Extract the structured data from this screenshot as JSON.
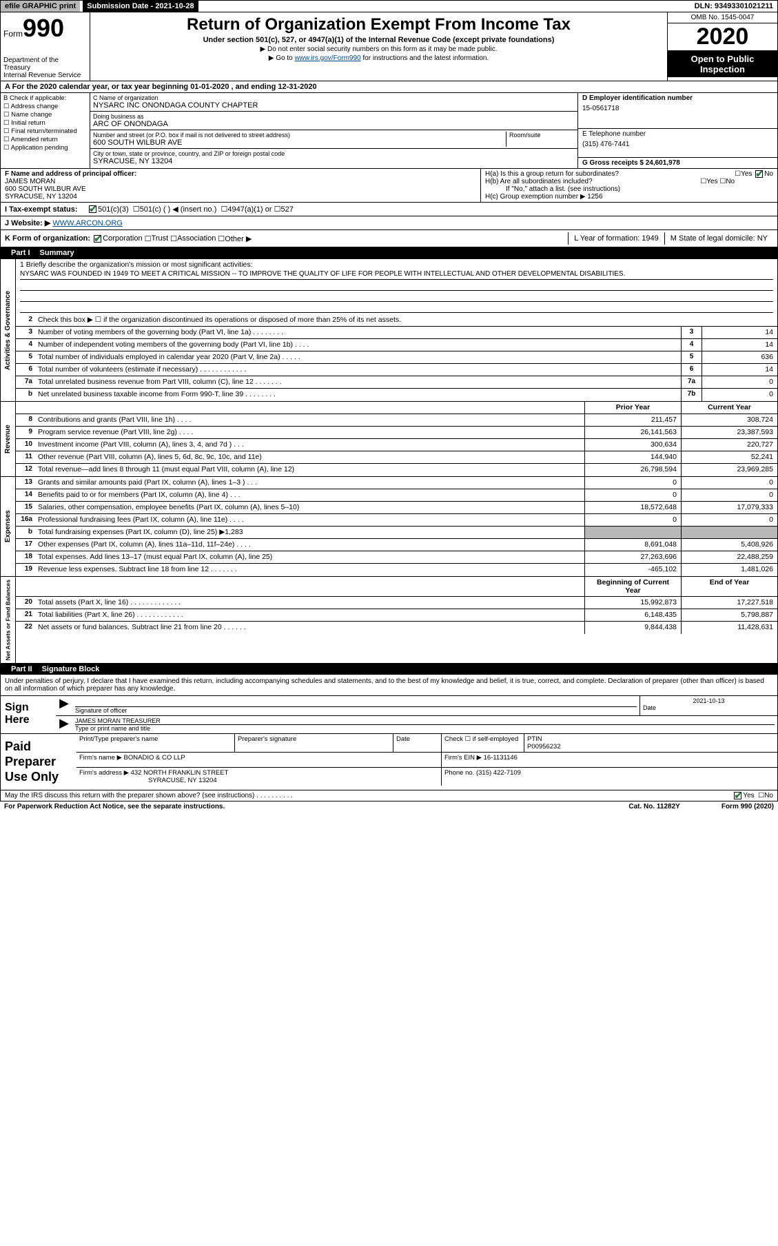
{
  "topbar": {
    "efile": "efile GRAPHIC print",
    "subdate_label": "Submission Date - 2021-10-28",
    "dln": "DLN: 93493301021211"
  },
  "header": {
    "form_prefix": "Form",
    "form_num": "990",
    "dept": "Department of the Treasury\nInternal Revenue Service",
    "title": "Return of Organization Exempt From Income Tax",
    "sub": "Under section 501(c), 527, or 4947(a)(1) of the Internal Revenue Code (except private foundations)",
    "note1": "▶ Do not enter social security numbers on this form as it may be made public.",
    "note2_pre": "▶ Go to ",
    "note2_link": "www.irs.gov/Form990",
    "note2_post": " for instructions and the latest information.",
    "omb": "OMB No. 1545-0047",
    "year": "2020",
    "inspect": "Open to Public Inspection"
  },
  "row_a": "A For the 2020 calendar year, or tax year beginning 01-01-2020   , and ending 12-31-2020",
  "col_b": {
    "label": "B Check if applicable:",
    "items": [
      "Address change",
      "Name change",
      "Initial return",
      "Final return/terminated",
      "Amended return",
      "Application pending"
    ]
  },
  "col_c": {
    "name_label": "C Name of organization",
    "name": "NYSARC INC ONONDAGA COUNTY CHAPTER",
    "dba_label": "Doing business as",
    "dba": "ARC OF ONONDAGA",
    "addr_label": "Number and street (or P.O. box if mail is not delivered to street address)",
    "room_label": "Room/suite",
    "addr": "600 SOUTH WILBUR AVE",
    "city_label": "City or town, state or province, country, and ZIP or foreign postal code",
    "city": "SYRACUSE, NY  13204"
  },
  "col_d": {
    "ein_label": "D Employer identification number",
    "ein": "15-0561718",
    "phone_label": "E Telephone number",
    "phone": "(315) 476-7441",
    "gross_label": "G Gross receipts $ 24,601,978"
  },
  "row_f": {
    "f_label": "F  Name and address of principal officer:",
    "f_name": "JAMES MORAN",
    "f_addr": "600 SOUTH WILBUR AVE\nSYRACUSE, NY  13204",
    "ha": "H(a)  Is this a group return for subordinates?",
    "ha_yes": "Yes",
    "ha_no": "No",
    "hb": "H(b)  Are all subordinates included?",
    "hb_note": "If \"No,\" attach a list. (see instructions)",
    "hc": "H(c)  Group exemption number ▶  1256"
  },
  "row_i": {
    "label": "I   Tax-exempt status:",
    "opt1": "501(c)(3)",
    "opt2": "501(c) (  ) ◀ (insert no.)",
    "opt3": "4947(a)(1) or",
    "opt4": "527"
  },
  "row_j": {
    "label": "J   Website: ▶",
    "val": "WWW.ARCON.ORG"
  },
  "row_k": {
    "k_label": "K Form of organization:",
    "opts": [
      "Corporation",
      "Trust",
      "Association",
      "Other ▶"
    ],
    "l_label": "L Year of formation: 1949",
    "m_label": "M State of legal domicile: NY"
  },
  "part1": {
    "num": "Part I",
    "title": "Summary"
  },
  "mission": {
    "label": "1  Briefly describe the organization's mission or most significant activities:",
    "text": "NYSARC WAS FOUNDED IN 1949 TO MEET A CRITICAL MISSION -- TO IMPROVE THE QUALITY OF LIFE FOR PEOPLE WITH INTELLECTUAL AND OTHER DEVELOPMENTAL DISABILITIES."
  },
  "lines_gov": [
    {
      "n": "2",
      "d": "Check this box ▶ ☐ if the organization discontinued its operations or disposed of more than 25% of its net assets.",
      "box": "",
      "val": ""
    },
    {
      "n": "3",
      "d": "Number of voting members of the governing body (Part VI, line 1a)   .   .   .   .   .   .   .   .",
      "box": "3",
      "val": "14"
    },
    {
      "n": "4",
      "d": "Number of independent voting members of the governing body (Part VI, line 1b)   .   .   .   .",
      "box": "4",
      "val": "14"
    },
    {
      "n": "5",
      "d": "Total number of individuals employed in calendar year 2020 (Part V, line 2a)   .   .   .   .   .",
      "box": "5",
      "val": "636"
    },
    {
      "n": "6",
      "d": "Total number of volunteers (estimate if necessary)   .   .   .   .   .   .   .   .   .   .   .   .",
      "box": "6",
      "val": "14"
    },
    {
      "n": "7a",
      "d": "Total unrelated business revenue from Part VIII, column (C), line 12   .   .   .   .   .   .   .",
      "box": "7a",
      "val": "0"
    },
    {
      "n": "b",
      "d": "Net unrelated business taxable income from Form 990-T, line 39   .   .   .   .   .   .   .   .",
      "box": "7b",
      "val": "0"
    }
  ],
  "col_headers": {
    "py": "Prior Year",
    "cy": "Current Year"
  },
  "lines_rev": [
    {
      "n": "8",
      "d": "Contributions and grants (Part VIII, line 1h)   .   .   .   .",
      "py": "211,457",
      "cy": "308,724"
    },
    {
      "n": "9",
      "d": "Program service revenue (Part VIII, line 2g)   .   .   .   .",
      "py": "26,141,563",
      "cy": "23,387,593"
    },
    {
      "n": "10",
      "d": "Investment income (Part VIII, column (A), lines 3, 4, and 7d )   .   .   .",
      "py": "300,634",
      "cy": "220,727"
    },
    {
      "n": "11",
      "d": "Other revenue (Part VIII, column (A), lines 5, 6d, 8c, 9c, 10c, and 11e)",
      "py": "144,940",
      "cy": "52,241"
    },
    {
      "n": "12",
      "d": "Total revenue—add lines 8 through 11 (must equal Part VIII, column (A), line 12)",
      "py": "26,798,594",
      "cy": "23,969,285"
    }
  ],
  "lines_exp": [
    {
      "n": "13",
      "d": "Grants and similar amounts paid (Part IX, column (A), lines 1–3 )   .   .   .",
      "py": "0",
      "cy": "0"
    },
    {
      "n": "14",
      "d": "Benefits paid to or for members (Part IX, column (A), line 4)   .   .   .",
      "py": "0",
      "cy": "0"
    },
    {
      "n": "15",
      "d": "Salaries, other compensation, employee benefits (Part IX, column (A), lines 5–10)",
      "py": "18,572,648",
      "cy": "17,079,333"
    },
    {
      "n": "16a",
      "d": "Professional fundraising fees (Part IX, column (A), line 11e)   .   .   .   .",
      "py": "0",
      "cy": "0"
    },
    {
      "n": "b",
      "d": "Total fundraising expenses (Part IX, column (D), line 25) ▶1,283",
      "py": "",
      "cy": "",
      "shaded": true
    },
    {
      "n": "17",
      "d": "Other expenses (Part IX, column (A), lines 11a–11d, 11f–24e)   .   .   .   .",
      "py": "8,691,048",
      "cy": "5,408,926"
    },
    {
      "n": "18",
      "d": "Total expenses. Add lines 13–17 (must equal Part IX, column (A), line 25)",
      "py": "27,263,696",
      "cy": "22,488,259"
    },
    {
      "n": "19",
      "d": "Revenue less expenses. Subtract line 18 from line 12   .   .   .   .   .   .   .",
      "py": "-465,102",
      "cy": "1,481,026"
    }
  ],
  "col_headers2": {
    "py": "Beginning of Current Year",
    "cy": "End of Year"
  },
  "lines_net": [
    {
      "n": "20",
      "d": "Total assets (Part X, line 16)   .   .   .   .   .   .   .   .   .   .   .   .   .",
      "py": "15,992,873",
      "cy": "17,227,518"
    },
    {
      "n": "21",
      "d": "Total liabilities (Part X, line 26)   .   .   .   .   .   .   .   .   .   .   .   .",
      "py": "6,148,435",
      "cy": "5,798,887"
    },
    {
      "n": "22",
      "d": "Net assets or fund balances. Subtract line 21 from line 20   .   .   .   .   .   .",
      "py": "9,844,438",
      "cy": "11,428,631"
    }
  ],
  "part2": {
    "num": "Part II",
    "title": "Signature Block"
  },
  "sig": {
    "intro": "Under penalties of perjury, I declare that I have examined this return, including accompanying schedules and statements, and to the best of my knowledge and belief, it is true, correct, and complete. Declaration of preparer (other than officer) is based on all information of which preparer has any knowledge.",
    "sign_here": "Sign Here",
    "sig_label": "Signature of officer",
    "date_val": "2021-10-13",
    "date_label": "Date",
    "name": "JAMES MORAN  TREASURER",
    "name_label": "Type or print name and title"
  },
  "paid": {
    "label": "Paid Preparer Use Only",
    "h1": "Print/Type preparer's name",
    "h2": "Preparer's signature",
    "h3": "Date",
    "h4_pre": "Check ☐ if self-employed",
    "h5_label": "PTIN",
    "h5": "P00956232",
    "firm_name_label": "Firm's name    ▶",
    "firm_name": "BONADIO & CO LLP",
    "firm_ein_label": "Firm's EIN ▶",
    "firm_ein": "16-1131146",
    "firm_addr_label": "Firm's address ▶",
    "firm_addr": "432 NORTH FRANKLIN STREET",
    "firm_city": "SYRACUSE, NY  13204",
    "phone_label": "Phone no.",
    "phone": "(315) 422-7109"
  },
  "footer": {
    "discuss": "May the IRS discuss this return with the preparer shown above? (see instructions)   .   .   .   .   .   .   .   .   .   .",
    "yes": "Yes",
    "no": "No",
    "paperwork": "For Paperwork Reduction Act Notice, see the separate instructions.",
    "cat": "Cat. No. 11282Y",
    "form": "Form 990 (2020)"
  },
  "vlabels": {
    "gov": "Activities & Governance",
    "rev": "Revenue",
    "exp": "Expenses",
    "net": "Net Assets or Fund Balances"
  }
}
